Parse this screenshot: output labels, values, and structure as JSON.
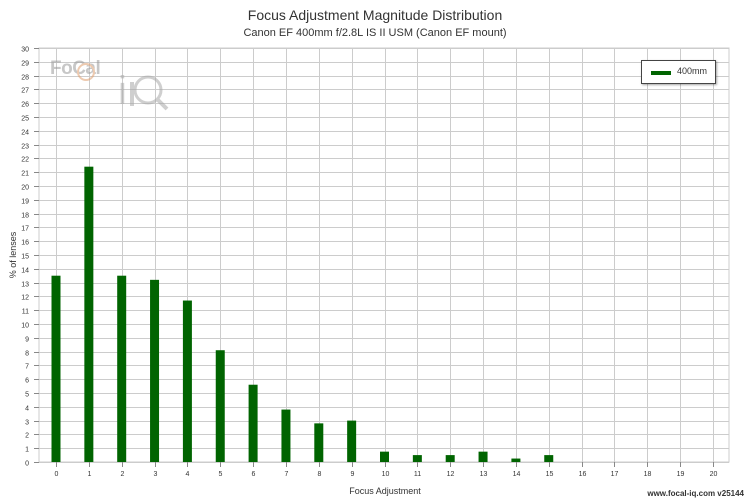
{
  "header": {
    "title": "Focus Adjustment Magnitude Distribution",
    "subtitle": "Canon EF 400mm f/2.8L IS II USM (Canon EF mount)"
  },
  "logo": {
    "text": "FoCal",
    "mark": "iQ"
  },
  "footer": {
    "text": "www.focal-iq.com  v25144"
  },
  "legend": {
    "label": "400mm"
  },
  "colors": {
    "bar": "#006400",
    "grid": "#cccccc",
    "axis": "#888888"
  },
  "chart_data": {
    "type": "bar",
    "xlabel": "Focus Adjustment",
    "ylabel": "% of lenses",
    "xlim": [
      0,
      20
    ],
    "ylim": [
      0,
      30
    ],
    "grid": true,
    "legend_position": "top-right",
    "x": [
      0,
      1,
      2,
      3,
      4,
      5,
      6,
      7,
      8,
      9,
      10,
      11,
      12,
      13,
      14,
      15,
      16,
      17,
      18,
      19,
      20
    ],
    "series": [
      {
        "name": "400mm",
        "values": [
          13.5,
          21.4,
          13.5,
          13.2,
          11.7,
          8.1,
          5.6,
          3.8,
          2.8,
          3.0,
          0.75,
          0.5,
          0.5,
          0.75,
          0.25,
          0.5,
          0,
          0,
          0,
          0,
          0
        ]
      }
    ]
  }
}
